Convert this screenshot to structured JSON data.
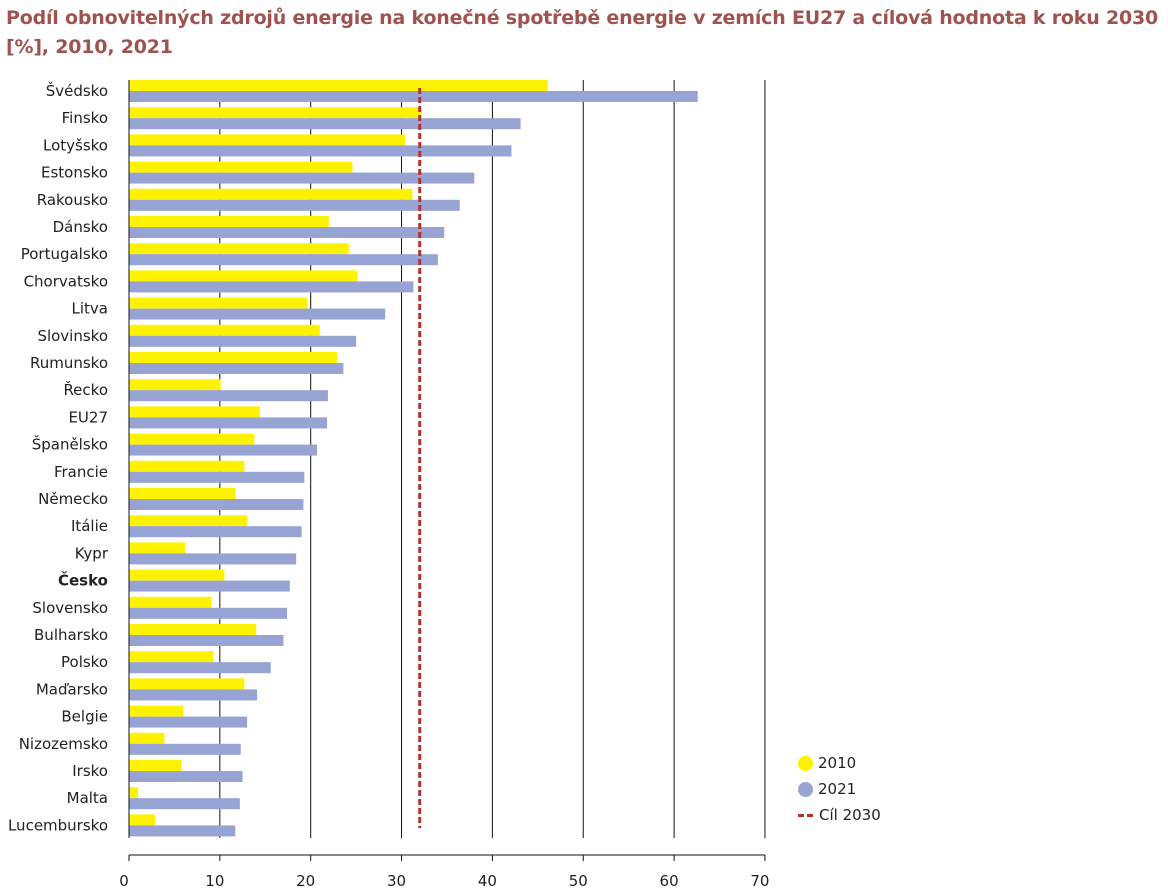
{
  "title_lines": [
    "Podíl obnovitelných zdrojů energie na konečné spotřebě energie v zemích EU27 a cílová hodnota k roku 2030",
    "[%], 2010, 2021"
  ],
  "colors": {
    "s2010": "#fff200",
    "s2021": "#96a3d3",
    "target": "#b5332e",
    "title": "#a0524f"
  },
  "legend": [
    {
      "label": "2010",
      "kind": "dot",
      "color": "#fff200"
    },
    {
      "label": "2021",
      "kind": "dot",
      "color": "#96a3d3"
    },
    {
      "label": "Cíl 2030",
      "kind": "dash",
      "color": "#b5332e"
    }
  ],
  "chart_data": {
    "type": "bar",
    "orientation": "horizontal",
    "categories": [
      "Švédsko",
      "Finsko",
      "Lotyšsko",
      "Estonsko",
      "Rakousko",
      "Dánsko",
      "Portugalsko",
      "Chorvatsko",
      "Litva",
      "Slovinsko",
      "Rumunsko",
      "Řecko",
      "EU27",
      "Španělsko",
      "Francie",
      "Německo",
      "Itálie",
      "Kypr",
      "Česko",
      "Slovensko",
      "Bulharsko",
      "Polsko",
      "Maďarsko",
      "Belgie",
      "Nizozemsko",
      "Irsko",
      "Malta",
      "Lucembursko"
    ],
    "highlight_category": "Česko",
    "series": [
      {
        "name": "2010",
        "values": [
          46.1,
          32.2,
          30.4,
          24.6,
          31.2,
          22.0,
          24.2,
          25.1,
          19.6,
          21.0,
          22.9,
          10.1,
          14.4,
          13.8,
          12.7,
          11.7,
          13.0,
          6.2,
          10.5,
          9.1,
          14.0,
          9.3,
          12.7,
          6.0,
          3.9,
          5.8,
          1.0,
          2.9
        ]
      },
      {
        "name": "2021",
        "values": [
          62.6,
          43.1,
          42.1,
          38.0,
          36.4,
          34.7,
          34.0,
          31.3,
          28.2,
          25.0,
          23.6,
          21.9,
          21.8,
          20.7,
          19.3,
          19.2,
          19.0,
          18.4,
          17.7,
          17.4,
          17.0,
          15.6,
          14.1,
          13.0,
          12.3,
          12.5,
          12.2,
          11.7
        ]
      }
    ],
    "target": {
      "name": "Cíl 2030",
      "value": 32
    },
    "xlim": [
      0,
      70
    ],
    "xticks": [
      0,
      10,
      20,
      30,
      40,
      50,
      60,
      70
    ],
    "grid": true
  }
}
